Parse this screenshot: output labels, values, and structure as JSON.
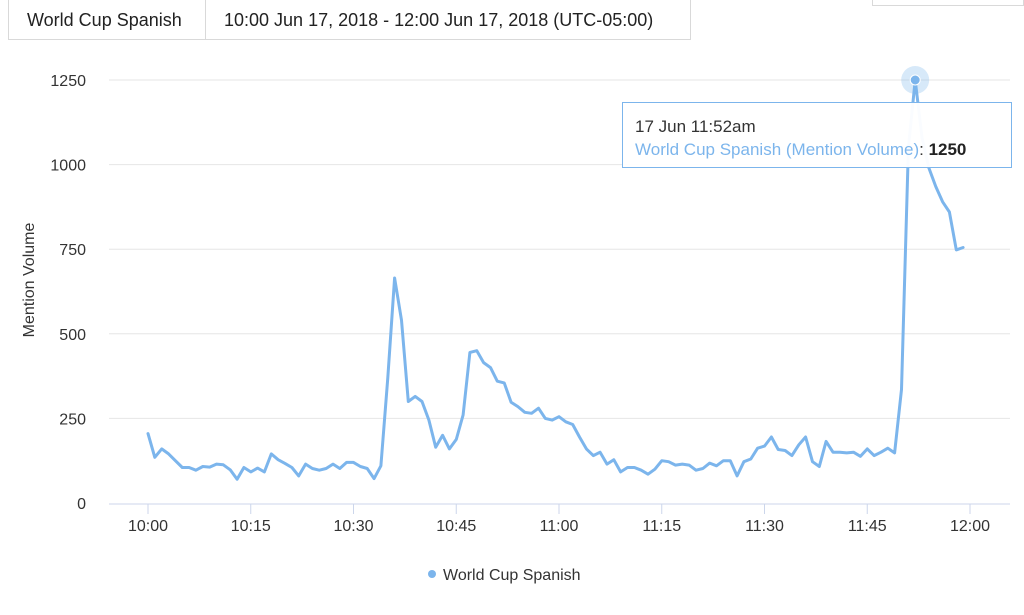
{
  "tabs": {
    "series_tab": "World Cup Spanish",
    "range_tab": "10:00 Jun 17, 2018 - 12:00 Jun 17, 2018 (UTC-05:00)"
  },
  "tooltip": {
    "time": "17 Jun 11:52am",
    "series_label": "World Cup Spanish (Mention Volume)",
    "separator": ": ",
    "value": "1250"
  },
  "legend": {
    "label": "World Cup Spanish"
  },
  "colors": {
    "series": "#7cb5ec",
    "grid": "#e6e6e6",
    "axis": "#ccd6eb"
  },
  "chart_data": {
    "type": "line",
    "title": "",
    "xlabel": "",
    "ylabel": "Mention Volume",
    "xlim": [
      0,
      120
    ],
    "ylim": [
      0,
      1250
    ],
    "yticks": [
      0,
      250,
      500,
      750,
      1000,
      1250
    ],
    "xticks": [
      0,
      15,
      30,
      45,
      60,
      75,
      90,
      105,
      120
    ],
    "xtick_labels": [
      "10:00",
      "10:15",
      "10:30",
      "10:45",
      "11:00",
      "11:15",
      "11:30",
      "11:45",
      "12:00"
    ],
    "x_unit": "minutes after 10:00",
    "grid": "horizontal",
    "legend_position": "bottom-center",
    "highlight": {
      "x": 112,
      "y": 1250
    },
    "series": [
      {
        "name": "World Cup Spanish",
        "x": [
          0,
          1,
          2,
          3,
          4,
          5,
          6,
          7,
          8,
          9,
          10,
          11,
          12,
          13,
          14,
          15,
          16,
          17,
          18,
          19,
          20,
          21,
          22,
          23,
          24,
          25,
          26,
          27,
          28,
          29,
          30,
          31,
          32,
          33,
          34,
          35,
          36,
          37,
          38,
          39,
          40,
          41,
          42,
          43,
          44,
          45,
          46,
          47,
          48,
          49,
          50,
          51,
          52,
          53,
          54,
          55,
          56,
          57,
          58,
          59,
          60,
          61,
          62,
          63,
          64,
          65,
          66,
          67,
          68,
          69,
          70,
          71,
          72,
          73,
          74,
          75,
          76,
          77,
          78,
          79,
          80,
          81,
          82,
          83,
          84,
          85,
          86,
          87,
          88,
          89,
          90,
          91,
          92,
          93,
          94,
          95,
          96,
          97,
          98,
          99,
          100,
          101,
          102,
          103,
          104,
          105,
          106,
          107,
          108,
          109,
          110,
          111,
          112,
          113,
          114,
          115,
          116,
          117,
          118,
          119
        ],
        "values": [
          205,
          135,
          160,
          145,
          125,
          105,
          105,
          97,
          108,
          106,
          115,
          113,
          98,
          70,
          105,
          92,
          103,
          92,
          145,
          128,
          117,
          105,
          80,
          115,
          102,
          97,
          102,
          115,
          102,
          120,
          120,
          108,
          102,
          72,
          110,
          370,
          665,
          540,
          300,
          315,
          300,
          245,
          165,
          200,
          160,
          188,
          260,
          445,
          450,
          415,
          400,
          360,
          355,
          298,
          285,
          268,
          265,
          280,
          250,
          245,
          255,
          240,
          232,
          195,
          160,
          140,
          150,
          115,
          128,
          92,
          105,
          105,
          97,
          85,
          100,
          125,
          122,
          112,
          115,
          112,
          97,
          102,
          118,
          110,
          125,
          125,
          80,
          122,
          130,
          162,
          168,
          195,
          158,
          155,
          140,
          172,
          195,
          122,
          108,
          182,
          150,
          150,
          148,
          150,
          138,
          160,
          140,
          150,
          162,
          148,
          335,
          1050,
          1250,
          1080,
          990,
          935,
          890,
          860,
          748,
          755
        ]
      }
    ]
  }
}
